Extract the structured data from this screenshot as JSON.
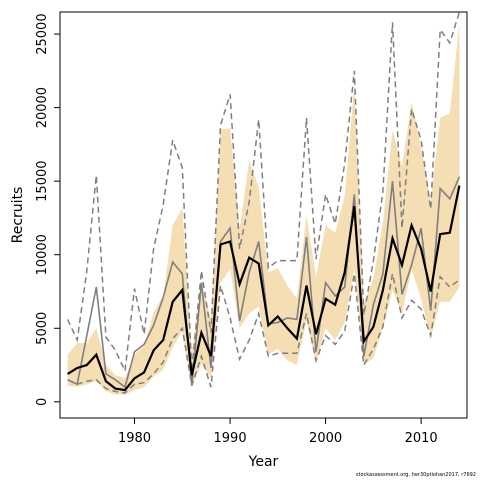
{
  "chart_data": {
    "type": "line",
    "xlabel": "Year",
    "ylabel": "Recruits",
    "xlim": [
      1972.2,
      2014.8
    ],
    "ylim": [
      -1100,
      26500
    ],
    "x_ticks": [
      1980,
      1990,
      2000,
      2010
    ],
    "y_ticks": [
      0,
      5000,
      10000,
      15000,
      20000,
      25000
    ],
    "x": [
      1973,
      1974,
      1975,
      1976,
      1977,
      1978,
      1979,
      1980,
      1981,
      1982,
      1983,
      1984,
      1985,
      1986,
      1987,
      1988,
      1989,
      1990,
      1991,
      1992,
      1993,
      1994,
      1995,
      1996,
      1997,
      1998,
      1999,
      2000,
      2001,
      2002,
      2003,
      2004,
      2005,
      2006,
      2007,
      2008,
      2009,
      2010,
      2011,
      2012,
      2013,
      2014
    ],
    "series": [
      {
        "role": "median",
        "color": "#000000",
        "values": [
          1900,
          2300,
          2500,
          3200,
          1400,
          900,
          800,
          1600,
          2000,
          3500,
          4200,
          6800,
          7600,
          1800,
          4700,
          3100,
          10700,
          10900,
          8000,
          9800,
          9400,
          5200,
          5800,
          5000,
          4300,
          7900,
          4600,
          7000,
          6600,
          8800,
          13300,
          4100,
          5100,
          7600,
          11100,
          9300,
          12000,
          10400,
          7500,
          11400,
          11500,
          14700
        ]
      },
      {
        "role": "interval-lower",
        "color": "#f5deb3",
        "values": [
          1100,
          1000,
          1200,
          1400,
          700,
          500,
          500,
          800,
          1000,
          1700,
          2200,
          3700,
          4800,
          1000,
          2600,
          1600,
          8100,
          9000,
          5000,
          6000,
          6500,
          3200,
          3600,
          2800,
          2500,
          5500,
          2600,
          5000,
          4200,
          5400,
          9000,
          2500,
          3000,
          5000,
          7600,
          6000,
          9000,
          7000,
          4400,
          6800,
          6800,
          7800
        ]
      },
      {
        "role": "interval-upper",
        "color": "#f5deb3",
        "values": [
          3200,
          4000,
          4000,
          5000,
          2500,
          1800,
          1600,
          3200,
          3800,
          6100,
          7200,
          12000,
          13200,
          3400,
          8100,
          5600,
          18500,
          18600,
          11800,
          16400,
          14600,
          8800,
          9100,
          7900,
          7000,
          12700,
          8500,
          12000,
          11500,
          14000,
          21500,
          6600,
          8400,
          12200,
          18500,
          16000,
          20400,
          17300,
          13600,
          19300,
          19600,
          25800
        ]
      },
      {
        "role": "mean",
        "color": "#7f7f7f",
        "values": [
          1500,
          1200,
          4500,
          7800,
          1900,
          1500,
          1000,
          3400,
          3900,
          5200,
          7100,
          9500,
          8700,
          1100,
          8100,
          2300,
          10900,
          11800,
          5500,
          8800,
          10900,
          5300,
          5400,
          5700,
          5600,
          11200,
          3400,
          8100,
          7200,
          7800,
          14100,
          3100,
          6600,
          8700,
          15000,
          7300,
          9300,
          11800,
          6200,
          14500,
          13800,
          15300
        ]
      },
      {
        "role": "mean-lower",
        "color": "#7f7f7f",
        "values": [
          1500,
          1200,
          1400,
          1500,
          900,
          700,
          600,
          1200,
          1300,
          1900,
          2700,
          4300,
          5000,
          1100,
          3100,
          1000,
          7900,
          5700,
          2900,
          4200,
          6000,
          3100,
          3300,
          3300,
          3300,
          6000,
          2800,
          4500,
          3900,
          4800,
          8700,
          2500,
          3600,
          5100,
          8700,
          5700,
          6900,
          6300,
          4500,
          8500,
          7800,
          8300
        ]
      },
      {
        "role": "mean-upper",
        "color": "#7f7f7f",
        "values": [
          5600,
          4200,
          8900,
          15400,
          4400,
          3500,
          2100,
          7700,
          4600,
          10400,
          13400,
          17800,
          15900,
          2100,
          8900,
          4700,
          18800,
          20900,
          10400,
          13600,
          19200,
          9100,
          9600,
          9600,
          9600,
          19300,
          9700,
          14100,
          12100,
          16200,
          22500,
          5900,
          9600,
          14300,
          25800,
          11800,
          19900,
          17800,
          13100,
          25300,
          24400,
          26500
        ]
      }
    ]
  },
  "footer": "stockassessment.org, her30ptiohan2017, r7692"
}
